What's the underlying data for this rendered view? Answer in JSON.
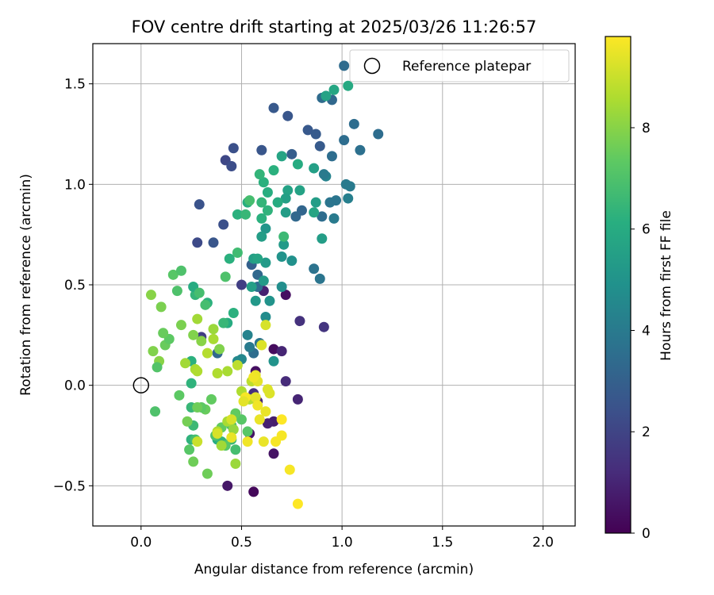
{
  "chart_data": {
    "type": "scatter",
    "title": "FOV centre drift starting at 2025/03/26 11:26:57",
    "xlabel": "Angular distance from reference (arcmin)",
    "ylabel": "Rotation from reference (arcmin)",
    "xlim": [
      -0.24,
      2.16
    ],
    "ylim": [
      -0.7,
      1.7
    ],
    "xticks": [
      0.0,
      0.5,
      1.0,
      1.5,
      2.0
    ],
    "xtick_labels": [
      "0.0",
      "0.5",
      "1.0",
      "1.5",
      "2.0"
    ],
    "yticks": [
      -0.5,
      0.0,
      0.5,
      1.0,
      1.5
    ],
    "ytick_labels": [
      "−0.5",
      "0.0",
      "0.5",
      "1.0",
      "1.5"
    ],
    "grid": true,
    "legend": {
      "position": "top-right",
      "entries": [
        {
          "label": "Reference platepar",
          "marker": "open-circle",
          "x": 0.0,
          "y": 0.0
        }
      ]
    },
    "colorbar": {
      "label": "Hours from first FF file",
      "colormap": "viridis",
      "range": [
        0,
        9.8
      ],
      "ticks": [
        0,
        2,
        4,
        6,
        8
      ],
      "tick_labels": [
        "0",
        "2",
        "4",
        "6",
        "8"
      ]
    },
    "points": [
      {
        "x": 0.56,
        "y": -0.53,
        "h": 0.2
      },
      {
        "x": 0.43,
        "y": -0.5,
        "h": 0.6
      },
      {
        "x": 0.66,
        "y": 0.18,
        "h": 0.3
      },
      {
        "x": 0.7,
        "y": 0.17,
        "h": 1.0
      },
      {
        "x": 0.72,
        "y": 0.02,
        "h": 1.2
      },
      {
        "x": 0.72,
        "y": 0.45,
        "h": 0.4
      },
      {
        "x": 0.57,
        "y": 0.07,
        "h": 0.4
      },
      {
        "x": 0.54,
        "y": -0.24,
        "h": 0.5
      },
      {
        "x": 0.66,
        "y": -0.34,
        "h": 0.5
      },
      {
        "x": 0.66,
        "y": -0.18,
        "h": 0.8
      },
      {
        "x": 0.63,
        "y": -0.19,
        "h": 0.9
      },
      {
        "x": 0.78,
        "y": -0.07,
        "h": 1.0
      },
      {
        "x": 0.61,
        "y": 0.47,
        "h": 0.9
      },
      {
        "x": 0.79,
        "y": 0.32,
        "h": 1.4
      },
      {
        "x": 0.91,
        "y": 0.29,
        "h": 1.5
      },
      {
        "x": 0.56,
        "y": -0.04,
        "h": 1.3
      },
      {
        "x": 0.58,
        "y": -0.08,
        "h": 1.1
      },
      {
        "x": 0.3,
        "y": 0.24,
        "h": 1.8
      },
      {
        "x": 0.5,
        "y": 0.5,
        "h": 1.8
      },
      {
        "x": 0.28,
        "y": 0.71,
        "h": 2.2
      },
      {
        "x": 0.36,
        "y": 0.71,
        "h": 2.6
      },
      {
        "x": 0.29,
        "y": 0.9,
        "h": 2.5
      },
      {
        "x": 0.41,
        "y": 0.8,
        "h": 2.4
      },
      {
        "x": 0.42,
        "y": 1.12,
        "h": 2.1
      },
      {
        "x": 0.45,
        "y": 1.09,
        "h": 2.3
      },
      {
        "x": 0.46,
        "y": 1.18,
        "h": 2.4
      },
      {
        "x": 0.66,
        "y": 1.38,
        "h": 2.7
      },
      {
        "x": 0.73,
        "y": 1.34,
        "h": 2.6
      },
      {
        "x": 0.6,
        "y": 1.17,
        "h": 2.6
      },
      {
        "x": 0.75,
        "y": 1.15,
        "h": 2.9
      },
      {
        "x": 0.83,
        "y": 1.27,
        "h": 2.7
      },
      {
        "x": 0.87,
        "y": 1.25,
        "h": 2.8
      },
      {
        "x": 0.89,
        "y": 1.19,
        "h": 2.8
      },
      {
        "x": 0.95,
        "y": 1.42,
        "h": 3.3
      },
      {
        "x": 0.9,
        "y": 1.43,
        "h": 3.4
      },
      {
        "x": 1.01,
        "y": 1.59,
        "h": 3.4
      },
      {
        "x": 0.95,
        "y": 1.14,
        "h": 3.5
      },
      {
        "x": 1.01,
        "y": 1.22,
        "h": 3.5
      },
      {
        "x": 1.06,
        "y": 1.3,
        "h": 3.5
      },
      {
        "x": 1.09,
        "y": 1.17,
        "h": 3.6
      },
      {
        "x": 1.18,
        "y": 1.25,
        "h": 3.5
      },
      {
        "x": 1.02,
        "y": 1.0,
        "h": 4.0
      },
      {
        "x": 1.04,
        "y": 0.99,
        "h": 4.0
      },
      {
        "x": 1.03,
        "y": 0.93,
        "h": 4.2
      },
      {
        "x": 0.97,
        "y": 0.92,
        "h": 3.8
      },
      {
        "x": 0.94,
        "y": 0.91,
        "h": 3.8
      },
      {
        "x": 0.92,
        "y": 1.04,
        "h": 4.3
      },
      {
        "x": 0.91,
        "y": 1.05,
        "h": 4.0
      },
      {
        "x": 0.96,
        "y": 0.83,
        "h": 4.0
      },
      {
        "x": 0.9,
        "y": 0.84,
        "h": 3.5
      },
      {
        "x": 0.86,
        "y": 0.58,
        "h": 3.7
      },
      {
        "x": 0.89,
        "y": 0.53,
        "h": 3.8
      },
      {
        "x": 0.8,
        "y": 0.87,
        "h": 3.2
      },
      {
        "x": 0.77,
        "y": 0.84,
        "h": 3.3
      },
      {
        "x": 0.55,
        "y": 0.6,
        "h": 3.0
      },
      {
        "x": 0.58,
        "y": 0.55,
        "h": 3.3
      },
      {
        "x": 0.58,
        "y": 0.49,
        "h": 3.5
      },
      {
        "x": 0.38,
        "y": 0.16,
        "h": 3.3
      },
      {
        "x": 0.56,
        "y": 0.16,
        "h": 3.5
      },
      {
        "x": 0.59,
        "y": 0.21,
        "h": 3.8
      },
      {
        "x": 0.54,
        "y": 0.19,
        "h": 4.0
      },
      {
        "x": 0.53,
        "y": 0.25,
        "h": 4.3
      },
      {
        "x": 0.5,
        "y": 0.13,
        "h": 4.5
      },
      {
        "x": 0.48,
        "y": 0.12,
        "h": 4.6
      },
      {
        "x": 0.62,
        "y": 0.34,
        "h": 4.7
      },
      {
        "x": 0.66,
        "y": 0.12,
        "h": 5.0
      },
      {
        "x": 0.64,
        "y": 0.42,
        "h": 5.0
      },
      {
        "x": 0.57,
        "y": 0.42,
        "h": 5.2
      },
      {
        "x": 0.7,
        "y": 0.49,
        "h": 4.8
      },
      {
        "x": 0.75,
        "y": 0.62,
        "h": 4.9
      },
      {
        "x": 0.7,
        "y": 0.64,
        "h": 5.0
      },
      {
        "x": 0.62,
        "y": 0.61,
        "h": 5.3
      },
      {
        "x": 0.55,
        "y": 0.49,
        "h": 5.5
      },
      {
        "x": 0.56,
        "y": 0.63,
        "h": 5.5
      },
      {
        "x": 0.58,
        "y": 0.63,
        "h": 5.7
      },
      {
        "x": 0.61,
        "y": 0.52,
        "h": 5.3
      },
      {
        "x": 0.62,
        "y": 0.78,
        "h": 5.1
      },
      {
        "x": 0.6,
        "y": 0.74,
        "h": 5.4
      },
      {
        "x": 0.71,
        "y": 0.7,
        "h": 5.3
      },
      {
        "x": 0.72,
        "y": 0.86,
        "h": 5.4
      },
      {
        "x": 0.73,
        "y": 0.97,
        "h": 5.6
      },
      {
        "x": 0.79,
        "y": 0.97,
        "h": 5.6
      },
      {
        "x": 0.72,
        "y": 0.93,
        "h": 5.5
      },
      {
        "x": 0.87,
        "y": 0.91,
        "h": 5.4
      },
      {
        "x": 0.86,
        "y": 0.86,
        "h": 5.7
      },
      {
        "x": 0.9,
        "y": 0.73,
        "h": 5.4
      },
      {
        "x": 0.86,
        "y": 1.08,
        "h": 5.5
      },
      {
        "x": 0.7,
        "y": 1.14,
        "h": 5.7
      },
      {
        "x": 0.92,
        "y": 1.44,
        "h": 5.6
      },
      {
        "x": 0.96,
        "y": 1.47,
        "h": 5.8
      },
      {
        "x": 1.03,
        "y": 1.49,
        "h": 5.9
      },
      {
        "x": 0.78,
        "y": 1.1,
        "h": 6.0
      },
      {
        "x": 0.61,
        "y": 1.01,
        "h": 6.2
      },
      {
        "x": 0.59,
        "y": 1.05,
        "h": 6.4
      },
      {
        "x": 0.66,
        "y": 1.07,
        "h": 6.2
      },
      {
        "x": 0.63,
        "y": 0.96,
        "h": 6.1
      },
      {
        "x": 0.6,
        "y": 0.91,
        "h": 6.4
      },
      {
        "x": 0.68,
        "y": 0.91,
        "h": 6.0
      },
      {
        "x": 0.63,
        "y": 0.87,
        "h": 6.3
      },
      {
        "x": 0.6,
        "y": 0.83,
        "h": 6.2
      },
      {
        "x": 0.53,
        "y": 0.91,
        "h": 6.1
      },
      {
        "x": 0.48,
        "y": 0.85,
        "h": 6.2
      },
      {
        "x": 0.52,
        "y": 0.85,
        "h": 6.5
      },
      {
        "x": 0.54,
        "y": 0.92,
        "h": 6.8
      },
      {
        "x": 0.71,
        "y": 0.74,
        "h": 6.6
      },
      {
        "x": 0.44,
        "y": 0.63,
        "h": 6.2
      },
      {
        "x": 0.48,
        "y": 0.66,
        "h": 6.7
      },
      {
        "x": 0.46,
        "y": 0.36,
        "h": 6.2
      },
      {
        "x": 0.43,
        "y": 0.31,
        "h": 6.0
      },
      {
        "x": 0.41,
        "y": 0.31,
        "h": 6.5
      },
      {
        "x": 0.33,
        "y": 0.41,
        "h": 6.2
      },
      {
        "x": 0.27,
        "y": 0.45,
        "h": 6.4
      },
      {
        "x": 0.26,
        "y": 0.49,
        "h": 6.0
      },
      {
        "x": 0.29,
        "y": 0.46,
        "h": 6.8
      },
      {
        "x": 0.32,
        "y": 0.4,
        "h": 6.8
      },
      {
        "x": 0.42,
        "y": 0.54,
        "h": 7.0
      },
      {
        "x": 0.16,
        "y": 0.55,
        "h": 7.2
      },
      {
        "x": 0.2,
        "y": 0.57,
        "h": 7.0
      },
      {
        "x": 0.18,
        "y": 0.47,
        "h": 7.0
      },
      {
        "x": 0.25,
        "y": 0.12,
        "h": 6.2
      },
      {
        "x": 0.25,
        "y": 0.01,
        "h": 6.3
      },
      {
        "x": 0.25,
        "y": -0.11,
        "h": 6.5
      },
      {
        "x": 0.26,
        "y": -0.2,
        "h": 6.6
      },
      {
        "x": 0.25,
        "y": -0.27,
        "h": 6.3
      },
      {
        "x": 0.27,
        "y": -0.27,
        "h": 6.8
      },
      {
        "x": 0.38,
        "y": -0.27,
        "h": 6.0
      },
      {
        "x": 0.4,
        "y": -0.28,
        "h": 6.4
      },
      {
        "x": 0.45,
        "y": -0.27,
        "h": 6.6
      },
      {
        "x": 0.47,
        "y": -0.32,
        "h": 6.8
      },
      {
        "x": 0.42,
        "y": -0.3,
        "h": 7.2
      },
      {
        "x": 0.45,
        "y": -0.2,
        "h": 7.0
      },
      {
        "x": 0.53,
        "y": -0.23,
        "h": 7.2
      },
      {
        "x": 0.5,
        "y": -0.17,
        "h": 7.2
      },
      {
        "x": 0.47,
        "y": -0.14,
        "h": 7.4
      },
      {
        "x": 0.4,
        "y": -0.21,
        "h": 7.4
      },
      {
        "x": 0.37,
        "y": -0.25,
        "h": 7.0
      },
      {
        "x": 0.32,
        "y": -0.12,
        "h": 7.5
      },
      {
        "x": 0.35,
        "y": -0.07,
        "h": 7.4
      },
      {
        "x": 0.3,
        "y": -0.11,
        "h": 7.3
      },
      {
        "x": 0.28,
        "y": -0.11,
        "h": 7.6
      },
      {
        "x": 0.23,
        "y": -0.18,
        "h": 7.7
      },
      {
        "x": 0.24,
        "y": -0.32,
        "h": 7.2
      },
      {
        "x": 0.26,
        "y": -0.38,
        "h": 7.6
      },
      {
        "x": 0.33,
        "y": -0.44,
        "h": 7.6
      },
      {
        "x": 0.47,
        "y": -0.39,
        "h": 8.3
      },
      {
        "x": 0.46,
        "y": -0.22,
        "h": 8.2
      },
      {
        "x": 0.4,
        "y": -0.3,
        "h": 8.4
      },
      {
        "x": 0.38,
        "y": -0.23,
        "h": 8.6
      },
      {
        "x": 0.43,
        "y": -0.18,
        "h": 8.5
      },
      {
        "x": 0.5,
        "y": -0.03,
        "h": 8.6
      },
      {
        "x": 0.54,
        "y": -0.07,
        "h": 8.7
      },
      {
        "x": 0.55,
        "y": 0.02,
        "h": 8.8
      },
      {
        "x": 0.48,
        "y": 0.1,
        "h": 8.8
      },
      {
        "x": 0.43,
        "y": 0.07,
        "h": 8.5
      },
      {
        "x": 0.38,
        "y": 0.06,
        "h": 8.6
      },
      {
        "x": 0.33,
        "y": 0.16,
        "h": 8.7
      },
      {
        "x": 0.36,
        "y": 0.23,
        "h": 8.5
      },
      {
        "x": 0.36,
        "y": 0.28,
        "h": 8.3
      },
      {
        "x": 0.28,
        "y": 0.33,
        "h": 8.4
      },
      {
        "x": 0.27,
        "y": 0.08,
        "h": 8.5
      },
      {
        "x": 0.28,
        "y": 0.07,
        "h": 8.6
      },
      {
        "x": 0.22,
        "y": 0.11,
        "h": 8.4
      },
      {
        "x": 0.19,
        "y": -0.05,
        "h": 7.3
      },
      {
        "x": 0.12,
        "y": 0.2,
        "h": 7.5
      },
      {
        "x": 0.14,
        "y": 0.23,
        "h": 7.3
      },
      {
        "x": 0.11,
        "y": 0.26,
        "h": 7.5
      },
      {
        "x": 0.1,
        "y": 0.39,
        "h": 7.8
      },
      {
        "x": 0.2,
        "y": 0.3,
        "h": 7.8
      },
      {
        "x": 0.05,
        "y": 0.45,
        "h": 8.0
      },
      {
        "x": 0.06,
        "y": 0.17,
        "h": 7.9
      },
      {
        "x": 0.09,
        "y": 0.12,
        "h": 8.0
      },
      {
        "x": 0.08,
        "y": 0.09,
        "h": 7.1
      },
      {
        "x": 0.07,
        "y": -0.13,
        "h": 7.0
      },
      {
        "x": 0.3,
        "y": 0.22,
        "h": 8.0
      },
      {
        "x": 0.26,
        "y": 0.25,
        "h": 7.9
      },
      {
        "x": 0.39,
        "y": 0.18,
        "h": 7.9
      },
      {
        "x": 0.57,
        "y": -0.06,
        "h": 9.4
      },
      {
        "x": 0.58,
        "y": 0.02,
        "h": 9.4
      },
      {
        "x": 0.57,
        "y": 0.05,
        "h": 9.5
      },
      {
        "x": 0.6,
        "y": 0.2,
        "h": 9.3
      },
      {
        "x": 0.62,
        "y": 0.3,
        "h": 9.2
      },
      {
        "x": 0.63,
        "y": -0.02,
        "h": 9.3
      },
      {
        "x": 0.64,
        "y": -0.04,
        "h": 9.3
      },
      {
        "x": 0.62,
        "y": -0.13,
        "h": 9.5
      },
      {
        "x": 0.59,
        "y": -0.17,
        "h": 9.5
      },
      {
        "x": 0.58,
        "y": -0.1,
        "h": 9.6
      },
      {
        "x": 0.56,
        "y": 0.04,
        "h": 9.6
      },
      {
        "x": 0.52,
        "y": -0.06,
        "h": 9.7
      },
      {
        "x": 0.53,
        "y": -0.28,
        "h": 9.6
      },
      {
        "x": 0.61,
        "y": -0.28,
        "h": 9.5
      },
      {
        "x": 0.67,
        "y": -0.28,
        "h": 9.7
      },
      {
        "x": 0.7,
        "y": -0.25,
        "h": 9.7
      },
      {
        "x": 0.7,
        "y": -0.17,
        "h": 9.8
      },
      {
        "x": 0.74,
        "y": -0.42,
        "h": 9.7
      },
      {
        "x": 0.78,
        "y": -0.59,
        "h": 9.8
      },
      {
        "x": 0.38,
        "y": -0.24,
        "h": 9.2
      },
      {
        "x": 0.28,
        "y": -0.28,
        "h": 9.0
      },
      {
        "x": 0.45,
        "y": -0.17,
        "h": 9.2
      },
      {
        "x": 0.51,
        "y": -0.08,
        "h": 9.4
      },
      {
        "x": 0.45,
        "y": -0.26,
        "h": 9.5
      }
    ]
  }
}
